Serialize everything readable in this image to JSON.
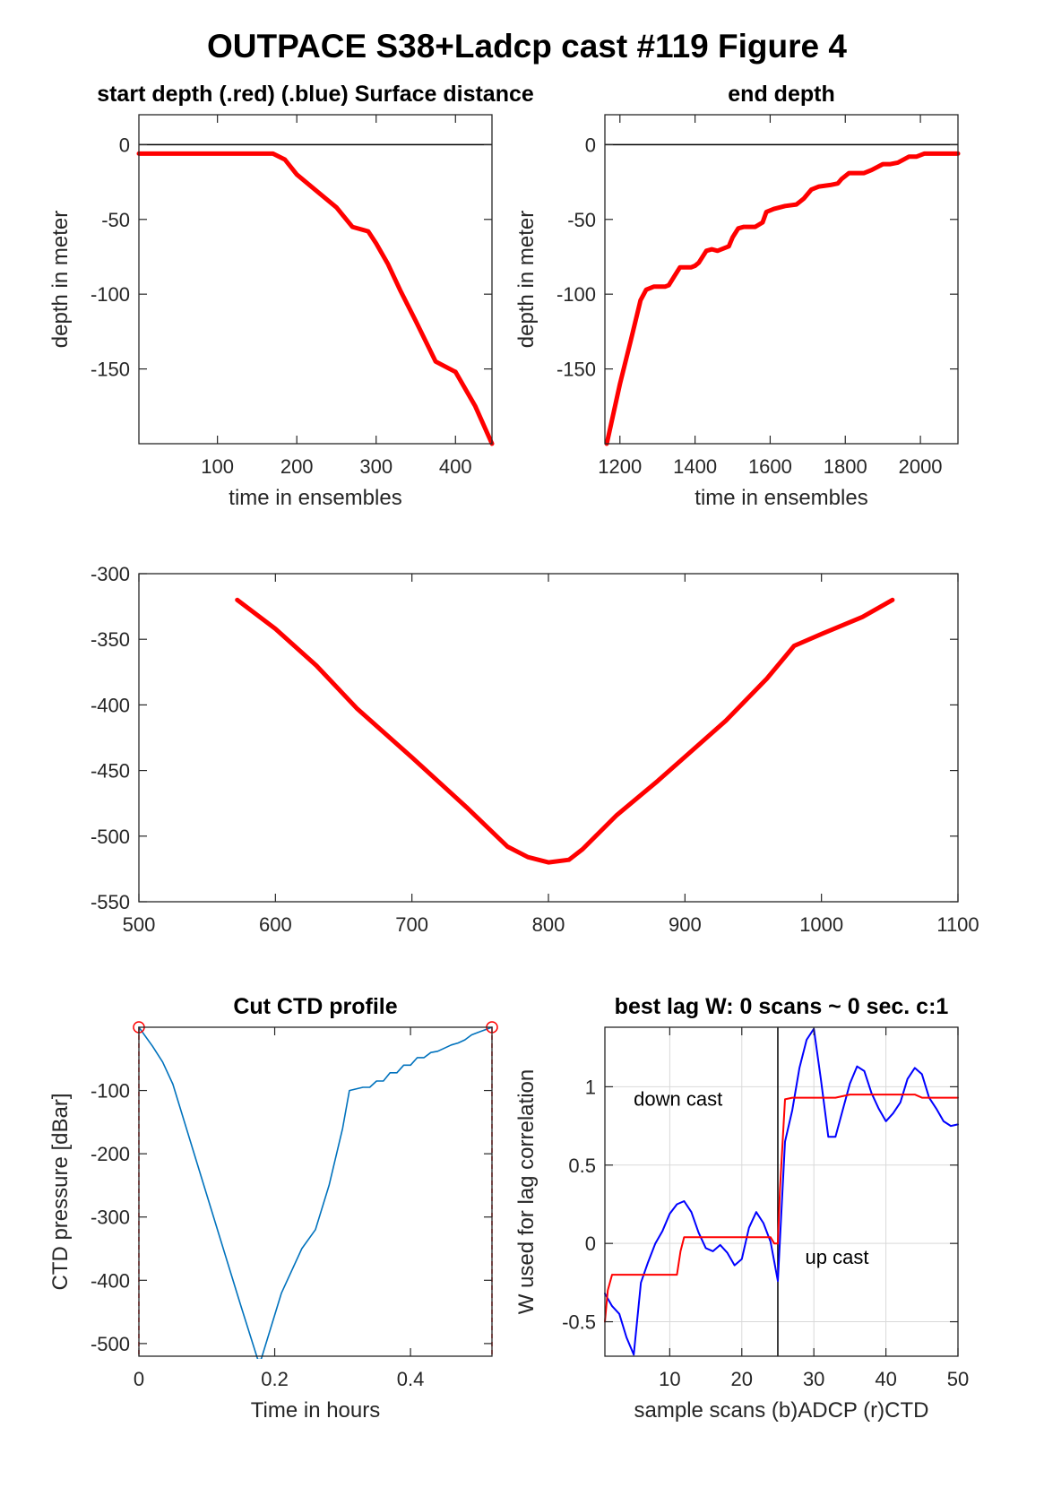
{
  "figure": {
    "title": "OUTPACE S38+Ladcp cast #119   Figure 4"
  },
  "chart_data": [
    {
      "id": "start_depth",
      "type": "line",
      "title": "start depth (.red) (.blue) Surface distance",
      "xlabel": "time in ensembles",
      "ylabel": "depth in meter",
      "xlim": [
        1,
        446
      ],
      "ylim": [
        -200,
        20
      ],
      "xticks": [
        100,
        200,
        300,
        400
      ],
      "yticks": [
        0,
        -50,
        -100,
        -150
      ],
      "grid": false,
      "reference_line": {
        "y": 0,
        "color": "#000000"
      },
      "series": [
        {
          "color": "#ff0000",
          "x": [
            1,
            50,
            100,
            150,
            170,
            185,
            200,
            225,
            250,
            270,
            290,
            300,
            315,
            330,
            350,
            375,
            400,
            425,
            446
          ],
          "y": [
            -6,
            -6,
            -6,
            -6,
            -6,
            -10,
            -20,
            -31,
            -42,
            -55,
            -58,
            -66,
            -80,
            -97,
            -118,
            -145,
            -152,
            -175,
            -200
          ]
        }
      ]
    },
    {
      "id": "end_depth",
      "type": "line",
      "title": "end depth",
      "xlabel": "time in ensembles",
      "ylabel": "depth in meter",
      "xlim": [
        1160,
        2100
      ],
      "ylim": [
        -200,
        20
      ],
      "xticks": [
        1200,
        1400,
        1600,
        1800,
        2000
      ],
      "yticks": [
        0,
        -50,
        -100,
        -150
      ],
      "grid": false,
      "reference_line": {
        "y": 0,
        "color": "#000000"
      },
      "series": [
        {
          "color": "#ff0000",
          "x": [
            1165,
            1200,
            1230,
            1255,
            1270,
            1290,
            1320,
            1330,
            1345,
            1360,
            1390,
            1400,
            1410,
            1430,
            1445,
            1460,
            1490,
            1500,
            1515,
            1530,
            1560,
            1580,
            1590,
            1610,
            1640,
            1670,
            1690,
            1710,
            1730,
            1760,
            1780,
            1790,
            1810,
            1830,
            1850,
            1870,
            1900,
            1920,
            1940,
            1970,
            1990,
            2010,
            2040,
            2070,
            2100
          ],
          "y": [
            -200,
            -160,
            -130,
            -104,
            -97,
            -95,
            -95,
            -94,
            -88,
            -82,
            -82,
            -81,
            -79,
            -71,
            -70,
            -71,
            -68,
            -62,
            -56,
            -55,
            -55,
            -52,
            -45,
            -43,
            -41,
            -40,
            -36,
            -30,
            -28,
            -27,
            -26,
            -23,
            -19,
            -19,
            -19,
            -17,
            -13,
            -13,
            -12,
            -8,
            -8,
            -6,
            -6,
            -6,
            -6
          ]
        }
      ]
    },
    {
      "id": "middle",
      "type": "line",
      "title": "",
      "xlabel": "",
      "ylabel": "",
      "xlim": [
        500,
        1100
      ],
      "ylim": [
        -550,
        -300
      ],
      "xticks": [
        500,
        600,
        700,
        800,
        900,
        1000,
        1100
      ],
      "yticks": [
        -300,
        -350,
        -400,
        -450,
        -500,
        -550
      ],
      "grid": false,
      "series": [
        {
          "color": "#ff0000",
          "x": [
            572,
            600,
            630,
            660,
            700,
            740,
            770,
            785,
            800,
            815,
            825,
            850,
            880,
            930,
            960,
            980,
            1000,
            1030,
            1052
          ],
          "y": [
            -320,
            -342,
            -370,
            -403,
            -440,
            -478,
            -508,
            -516,
            -520,
            -518,
            -510,
            -484,
            -458,
            -412,
            -380,
            -355,
            -346,
            -333,
            -320
          ]
        }
      ]
    },
    {
      "id": "ctd_profile",
      "type": "line",
      "title": "Cut CTD profile",
      "xlabel": "Time in hours",
      "ylabel": "CTD pressure [dBar]",
      "xlim": [
        0,
        0.52
      ],
      "ylim": [
        -520,
        0
      ],
      "xticks": [
        0,
        0.2,
        0.4
      ],
      "xtick_labels": [
        "0",
        "0.2",
        "0.4"
      ],
      "yticks": [
        -100,
        -200,
        -300,
        -400,
        -500
      ],
      "grid": false,
      "markers": [
        {
          "x": 0,
          "y": 0,
          "shape": "circle",
          "color": "#ff0000"
        },
        {
          "x": 0.52,
          "y": 0,
          "shape": "circle",
          "color": "#ff0000"
        }
      ],
      "vertical_lines": [
        {
          "x": 0,
          "color": "#ff0000",
          "style": "dashed"
        },
        {
          "x": 0.52,
          "color": "#ff0000",
          "style": "dashed"
        }
      ],
      "series": [
        {
          "color": "#0072bd",
          "x": [
            0,
            0.02,
            0.035,
            0.05,
            0.08,
            0.12,
            0.15,
            0.175,
            0.18,
            0.21,
            0.24,
            0.26,
            0.28,
            0.3,
            0.31,
            0.33,
            0.34,
            0.35,
            0.36,
            0.37,
            0.38,
            0.39,
            0.4,
            0.41,
            0.42,
            0.43,
            0.44,
            0.45,
            0.46,
            0.47,
            0.48,
            0.49,
            0.5,
            0.52
          ],
          "y": [
            0,
            -30,
            -55,
            -90,
            -195,
            -335,
            -440,
            -525,
            -525,
            -420,
            -350,
            -320,
            -250,
            -160,
            -100,
            -95,
            -95,
            -85,
            -85,
            -72,
            -72,
            -60,
            -60,
            -48,
            -48,
            -40,
            -38,
            -33,
            -28,
            -25,
            -20,
            -12,
            -8,
            0
          ]
        }
      ]
    },
    {
      "id": "lag_correlation",
      "type": "line",
      "title": "best lag W: 0 scans ~ 0 sec.  c:1",
      "xlabel": "sample scans (b)ADCP (r)CTD",
      "ylabel": "W used for lag correlation",
      "xlim": [
        1,
        50
      ],
      "ylim": [
        -0.72,
        1.38
      ],
      "xticks": [
        10,
        20,
        30,
        40,
        50
      ],
      "yticks": [
        1,
        0.5,
        0,
        -0.5
      ],
      "grid": true,
      "vertical_line": {
        "x": 25,
        "color": "#000000"
      },
      "annotations": [
        {
          "text": "down cast",
          "x": 5,
          "y": 0.88
        },
        {
          "text": "up cast",
          "x": 28.8,
          "y": -0.13
        }
      ],
      "series": [
        {
          "color": "#0000ff",
          "x": [
            1,
            2,
            3,
            4,
            5,
            6,
            7,
            8,
            9,
            10,
            11,
            12,
            13,
            14,
            15,
            16,
            17,
            18,
            19,
            20,
            21,
            22,
            23,
            24,
            25,
            26,
            27,
            28,
            29,
            30,
            31,
            32,
            33,
            34,
            35,
            36,
            37,
            38,
            39,
            40,
            41,
            42,
            43,
            44,
            45,
            46,
            47,
            48,
            49,
            50
          ],
          "y": [
            -0.32,
            -0.4,
            -0.45,
            -0.6,
            -0.71,
            -0.25,
            -0.12,
            0,
            0.08,
            0.19,
            0.25,
            0.27,
            0.2,
            0.07,
            -0.03,
            -0.05,
            -0.01,
            -0.06,
            -0.14,
            -0.1,
            0.1,
            0.2,
            0.13,
            0.01,
            -0.24,
            0.65,
            0.85,
            1.12,
            1.3,
            1.37,
            1.04,
            0.68,
            0.68,
            0.85,
            1.02,
            1.13,
            1.1,
            0.96,
            0.86,
            0.78,
            0.83,
            0.9,
            1.05,
            1.12,
            1.08,
            0.93,
            0.86,
            0.78,
            0.75,
            0.76
          ]
        },
        {
          "color": "#ff0000",
          "x": [
            1,
            1.4,
            2,
            3,
            3,
            11,
            11.5,
            12,
            24,
            24.5,
            25,
            25.3,
            26,
            27,
            28,
            33,
            35,
            36,
            44,
            45,
            50
          ],
          "y": [
            -0.5,
            -0.3,
            -0.2,
            -0.2,
            -0.2,
            -0.2,
            -0.05,
            0.04,
            0.04,
            0,
            0,
            0.35,
            0.92,
            0.93,
            0.93,
            0.93,
            0.95,
            0.95,
            0.95,
            0.93,
            0.93
          ]
        }
      ]
    }
  ]
}
